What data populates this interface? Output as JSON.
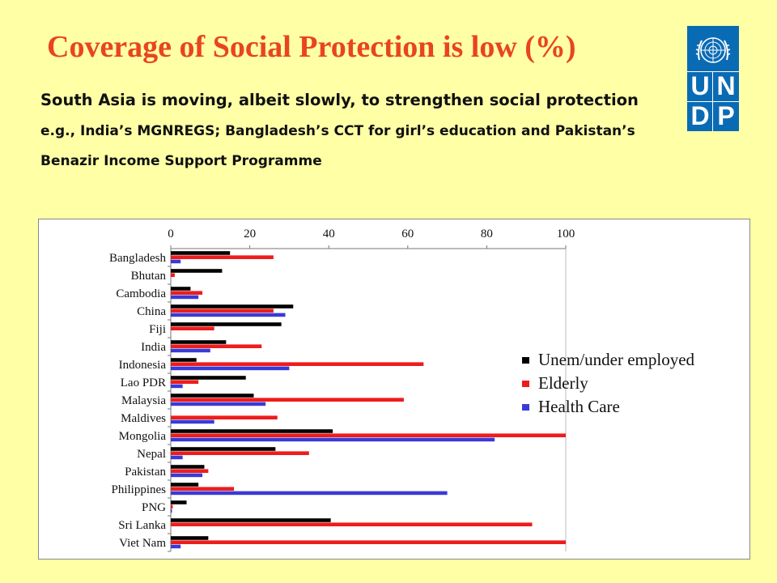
{
  "slide": {
    "title": "Coverage of Social Protection is low (%)",
    "subtitle_part1": "South Asia is moving, albeit slowly, to strengthen social protection",
    "subtitle_part2": " e.g., India’s MGNREGS; Bangladesh’s CCT for girl’s education and Pakistan’s Benazir Income Support Programme"
  },
  "logo": {
    "letters": [
      "U",
      "N",
      "D",
      "P"
    ],
    "color": "#0a6bb5"
  },
  "colors": {
    "background": "#ffffa6",
    "title": "#e8451e"
  },
  "chart_data": {
    "type": "bar",
    "orientation": "horizontal",
    "title": "",
    "xlabel": "",
    "ylabel": "",
    "xlim": [
      0,
      100
    ],
    "xticks": [
      0,
      20,
      40,
      60,
      80,
      100
    ],
    "x_axis_position": "top",
    "grid": false,
    "legend_position": "right",
    "categories": [
      "Bangladesh",
      "Bhutan",
      "Cambodia",
      "China",
      "Fiji",
      "India",
      "Indonesia",
      "Lao PDR",
      "Malaysia",
      "Maldives",
      "Mongolia",
      "Nepal",
      "Pakistan",
      "Philippines",
      "PNG",
      "Sri Lanka",
      "Viet Nam"
    ],
    "series": [
      {
        "name": "Unem/under employed",
        "color": "#000000",
        "values": [
          15,
          13,
          5,
          31,
          28,
          14,
          6.5,
          19,
          21,
          0,
          41,
          26.5,
          8.5,
          7,
          4,
          40.5,
          9.5
        ]
      },
      {
        "name": "Elderly",
        "color": "#ee1c1c",
        "values": [
          26,
          1,
          8,
          26,
          11,
          23,
          64,
          7,
          59,
          27,
          100,
          35,
          9.5,
          16,
          0.5,
          91.5,
          100
        ]
      },
      {
        "name": "Health Care",
        "color": "#3a3ad6",
        "values": [
          2.5,
          0,
          7,
          29,
          0,
          10,
          30,
          3,
          24,
          11,
          82,
          3,
          8,
          70,
          0.3,
          0,
          2.5
        ]
      }
    ]
  }
}
